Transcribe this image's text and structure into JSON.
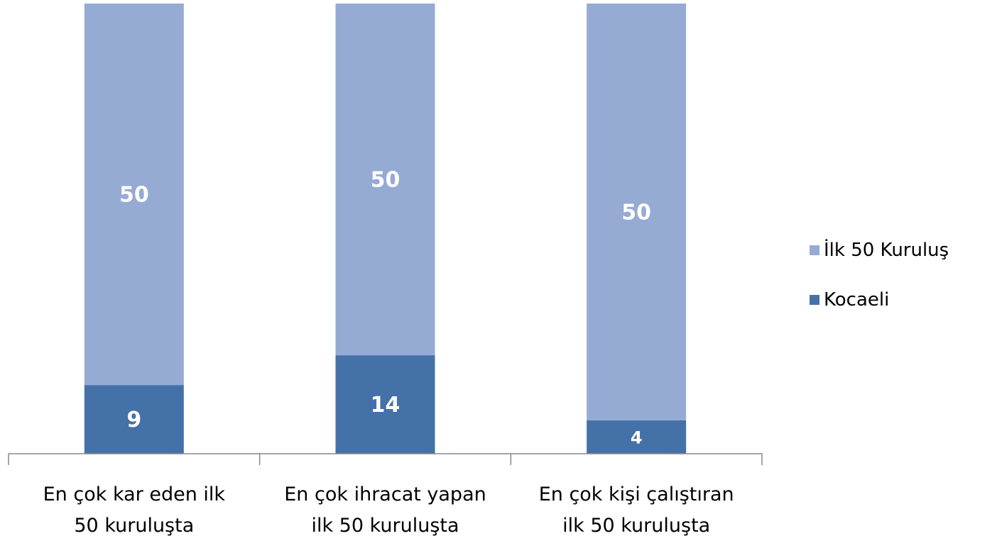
{
  "chart_data": {
    "type": "bar",
    "stacked": "percent",
    "categories": [
      "En çok kar eden ilk\n50 kuruluşta",
      "En çok ihracat yapan\nilk 50 kuruluşta",
      "En çok kişi çalıştıran\nilk 50 kuruluşta"
    ],
    "series": [
      {
        "name": "Kocaeli",
        "color": "#4571a9",
        "values": [
          9,
          14,
          4
        ]
      },
      {
        "name": "İlk 50 Kuruluş",
        "color": "#95abd4",
        "values": [
          50,
          50,
          50
        ]
      }
    ],
    "legend": "right"
  }
}
